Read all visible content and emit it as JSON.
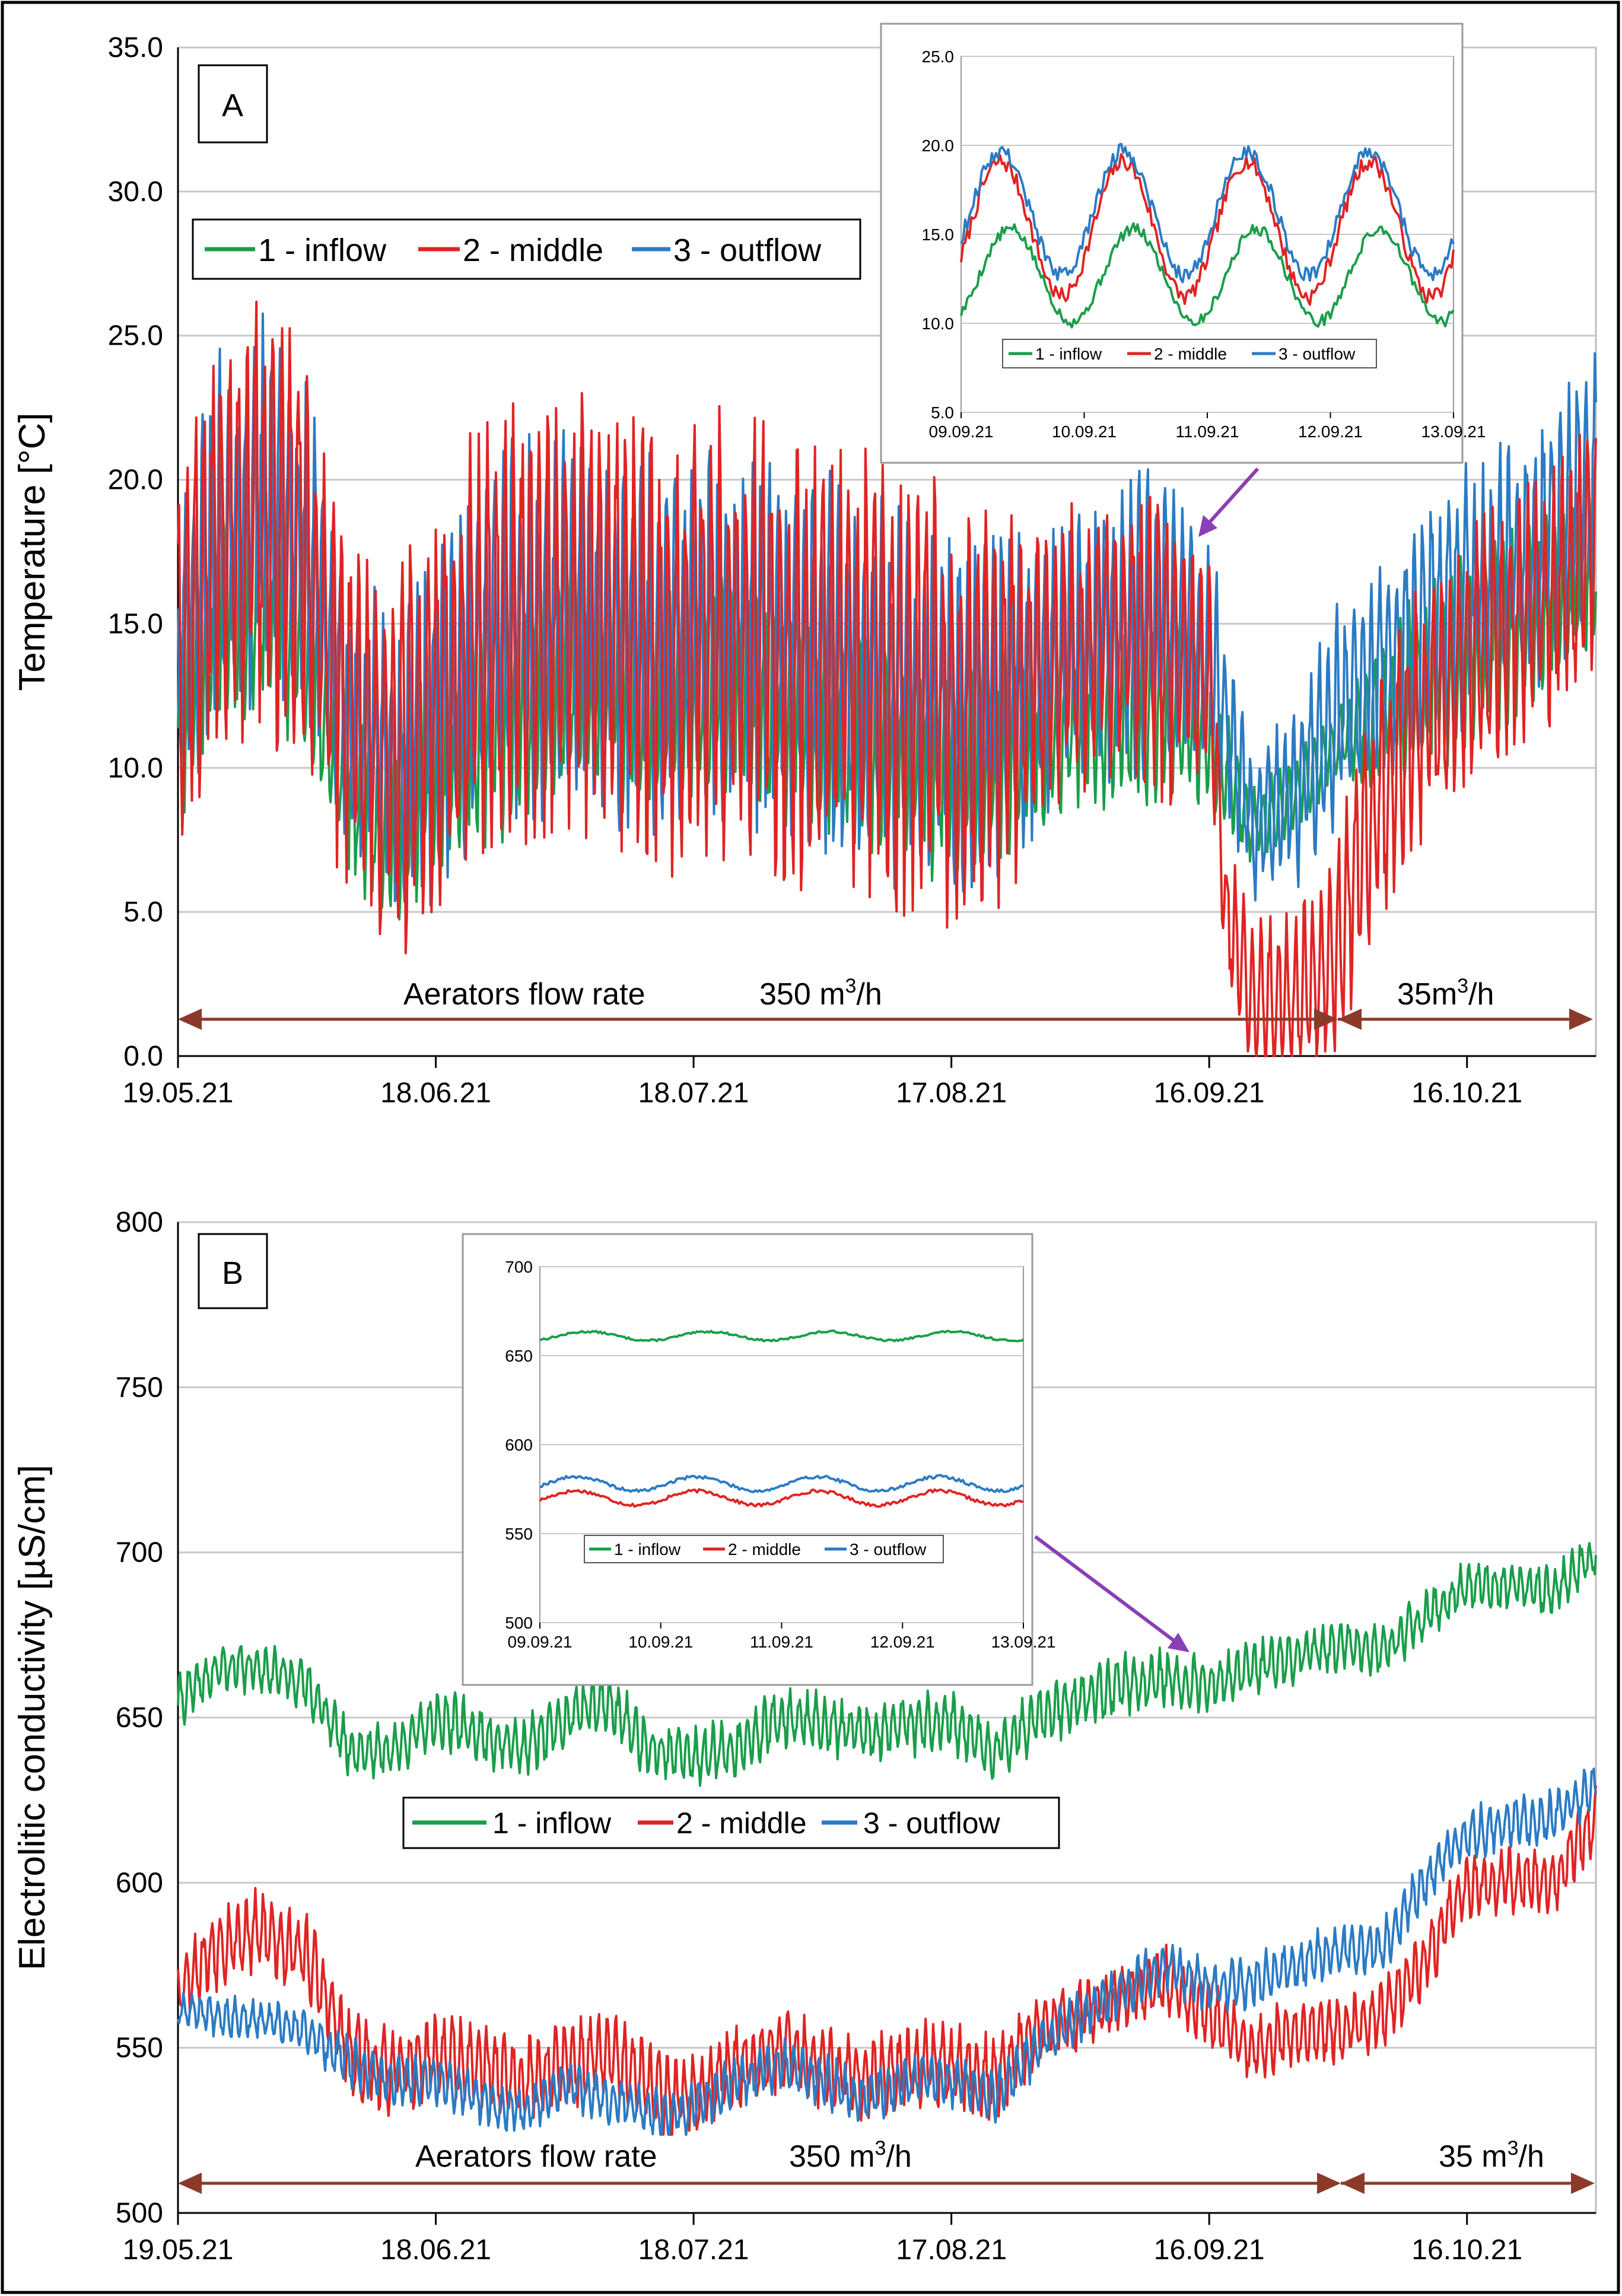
{
  "figure": {
    "frame": "outer-border"
  },
  "colors": {
    "inflow": "#1a9e4a",
    "middle": "#e02424",
    "outflow": "#2b7bc4",
    "arrow": "#8b3a2a",
    "callout": "#8a3fb5",
    "grid": "#c8c8c8"
  },
  "chart_data": [
    {
      "id": "A",
      "type": "line",
      "panel_label": "A",
      "ylabel": "Temperature [°C]",
      "xlabel": "",
      "ylim": [
        0,
        35
      ],
      "yticks": [
        "0.0",
        "5.0",
        "10.0",
        "15.0",
        "20.0",
        "25.0",
        "30.0",
        "35.0"
      ],
      "xlim_days": [
        0,
        165
      ],
      "xticks": [
        {
          "label": "19.05.21",
          "day": 0
        },
        {
          "label": "18.06.21",
          "day": 30
        },
        {
          "label": "18.07.21",
          "day": 60
        },
        {
          "label": "17.08.21",
          "day": 90
        },
        {
          "label": "16.09.21",
          "day": 120
        },
        {
          "label": "16.10.21",
          "day": 150
        }
      ],
      "legend": [
        "1 - inflow",
        "2 - middle",
        "3 - outflow"
      ],
      "legend_position": "top-left",
      "series": [
        {
          "name": "1 - inflow",
          "color": "#1a9e4a",
          "days": [
            0,
            5,
            10,
            15,
            20,
            25,
            30,
            35,
            40,
            45,
            50,
            55,
            60,
            65,
            70,
            75,
            80,
            85,
            90,
            95,
            100,
            105,
            110,
            115,
            120,
            125,
            130,
            135,
            140,
            145,
            150,
            155,
            160,
            165
          ],
          "mean": [
            12,
            15,
            16,
            14,
            9,
            8,
            10,
            11,
            12,
            13,
            13,
            12,
            12.5,
            13,
            12,
            11.5,
            11,
            10.5,
            10,
            10.5,
            11,
            11.5,
            12,
            12,
            11,
            8,
            9,
            11,
            12,
            13,
            14,
            15,
            16,
            16.5
          ],
          "amp": [
            3,
            3,
            3,
            3,
            2.5,
            2.5,
            3,
            3,
            3,
            3,
            3,
            3,
            3,
            3,
            3,
            3,
            3,
            3,
            3,
            3,
            2.5,
            2.5,
            2.5,
            2.5,
            2,
            1,
            1,
            1,
            2,
            2.5,
            2.5,
            2.5,
            2.5,
            2.5
          ],
          "phase": 0.0,
          "seed": 11
        },
        {
          "name": "3 - outflow",
          "color": "#2b7bc4",
          "days": [
            0,
            5,
            10,
            15,
            20,
            25,
            30,
            35,
            40,
            45,
            50,
            55,
            60,
            65,
            70,
            75,
            80,
            85,
            90,
            95,
            100,
            105,
            110,
            115,
            120,
            125,
            130,
            135,
            140,
            145,
            150,
            155,
            160,
            165
          ],
          "mean": [
            14,
            18,
            19,
            17,
            12,
            10,
            12,
            14,
            15,
            15,
            15,
            14,
            14.5,
            15,
            14,
            13.5,
            13,
            12.5,
            12,
            12.5,
            13,
            14,
            15,
            15,
            14,
            8,
            9,
            12,
            13,
            15,
            16,
            17,
            18,
            20
          ],
          "amp": [
            4,
            5,
            5,
            5,
            4,
            4,
            5,
            5,
            5,
            5,
            5,
            5,
            5,
            5,
            5,
            5,
            5,
            5,
            5,
            5,
            4,
            4,
            4,
            4,
            3,
            2,
            2.5,
            3,
            3,
            3.5,
            3.5,
            3.5,
            3.5,
            3.5
          ],
          "phase": 0.4,
          "seed": 23
        },
        {
          "name": "2 - middle",
          "color": "#e02424",
          "days": [
            0,
            5,
            10,
            15,
            20,
            25,
            30,
            35,
            40,
            45,
            50,
            55,
            60,
            65,
            70,
            75,
            80,
            85,
            90,
            95,
            100,
            105,
            110,
            115,
            120,
            122,
            125,
            130,
            135,
            140,
            145,
            150,
            155,
            160,
            165
          ],
          "mean": [
            14,
            18,
            19,
            17,
            12,
            10,
            12,
            14,
            15,
            15,
            15,
            14,
            14.5,
            15,
            14,
            13.5,
            13,
            12.5,
            12,
            12.5,
            13,
            14,
            15,
            14,
            13,
            5,
            2,
            2,
            4,
            9,
            12,
            14,
            15,
            16,
            18
          ],
          "amp": [
            5,
            6,
            6,
            6,
            5,
            5,
            6,
            6,
            6,
            6,
            6,
            6,
            6,
            6,
            6,
            6,
            6,
            6,
            6,
            6,
            4,
            4,
            4,
            4,
            3,
            2,
            2,
            2.5,
            3,
            3.5,
            3.5,
            3.5,
            3.5,
            3.5,
            3.5
          ],
          "phase": 0.2,
          "seed": 37
        }
      ],
      "annotations": [
        {
          "text": "Aerators flow rate",
          "kind": "label"
        },
        {
          "text": "350 m",
          "sup": "3",
          "after": "/h",
          "span_days": [
            0,
            135
          ]
        },
        {
          "text": "35m",
          "sup": "3",
          "after": "/h",
          "span_days": [
            135,
            165
          ]
        }
      ],
      "inset": {
        "type": "line",
        "ylim": [
          5,
          25
        ],
        "yticks": [
          "5.0",
          "10.0",
          "15.0",
          "20.0",
          "25.0"
        ],
        "xticks": [
          "09.09.21",
          "10.09.21",
          "11.09.21",
          "12.09.21",
          "13.09.21"
        ],
        "legend": [
          "1 - inflow",
          "2 - middle",
          "3 - outflow"
        ],
        "series": [
          {
            "name": "1 - inflow",
            "color": "#1a9e4a",
            "mean": 12.7,
            "amp": 2.6,
            "phase": 0.0,
            "seed": 5
          },
          {
            "name": "2 - middle",
            "color": "#e02424",
            "mean": 15.3,
            "amp": 3.8,
            "phase": 0.08,
            "seed": 7
          },
          {
            "name": "3 - outflow",
            "color": "#2b7bc4",
            "mean": 16.2,
            "amp": 3.5,
            "phase": 0.08,
            "seed": 9
          }
        ]
      }
    },
    {
      "id": "B",
      "type": "line",
      "panel_label": "B",
      "ylabel": "Electrolitic conductivity [µS/cm]",
      "xlabel": "",
      "ylim": [
        500,
        800
      ],
      "yticks": [
        "500",
        "550",
        "600",
        "650",
        "700",
        "750",
        "800"
      ],
      "xlim_days": [
        0,
        165
      ],
      "xticks": [
        {
          "label": "19.05.21",
          "day": 0
        },
        {
          "label": "18.06.21",
          "day": 30
        },
        {
          "label": "18.07.21",
          "day": 60
        },
        {
          "label": "17.08.21",
          "day": 90
        },
        {
          "label": "16.09.21",
          "day": 120
        },
        {
          "label": "16.10.21",
          "day": 150
        }
      ],
      "legend": [
        "1 - inflow",
        "2 - middle",
        "3 - outflow"
      ],
      "legend_position": "center-left",
      "series": [
        {
          "name": "1 - inflow",
          "color": "#1a9e4a",
          "days": [
            0,
            5,
            10,
            15,
            20,
            25,
            30,
            35,
            40,
            45,
            50,
            55,
            60,
            65,
            70,
            75,
            80,
            85,
            90,
            95,
            100,
            105,
            110,
            115,
            120,
            125,
            130,
            135,
            140,
            145,
            150,
            155,
            160,
            165
          ],
          "mean": [
            655,
            665,
            665,
            660,
            640,
            640,
            650,
            645,
            640,
            650,
            655,
            640,
            638,
            640,
            650,
            648,
            645,
            648,
            648,
            640,
            650,
            655,
            660,
            662,
            660,
            665,
            668,
            672,
            670,
            680,
            690,
            690,
            688,
            700
          ],
          "amp": [
            6,
            6,
            6,
            6,
            6,
            6,
            7,
            7,
            7,
            7,
            7,
            7,
            7,
            7,
            7,
            7,
            7,
            7,
            7,
            7,
            7,
            7,
            7,
            7,
            6,
            6,
            6,
            6,
            6,
            6,
            6,
            6,
            6,
            6
          ],
          "phase": 0.0,
          "seed": 41
        },
        {
          "name": "2 - middle",
          "color": "#e02424",
          "days": [
            0,
            5,
            10,
            15,
            20,
            25,
            30,
            35,
            40,
            45,
            50,
            55,
            60,
            65,
            70,
            75,
            80,
            85,
            90,
            95,
            100,
            105,
            110,
            115,
            120,
            125,
            130,
            135,
            140,
            145,
            150,
            155,
            160,
            165
          ],
          "mean": [
            568,
            582,
            585,
            578,
            548,
            542,
            548,
            545,
            540,
            545,
            548,
            538,
            535,
            545,
            550,
            545,
            540,
            545,
            545,
            540,
            555,
            560,
            565,
            570,
            560,
            550,
            555,
            555,
            560,
            575,
            600,
            600,
            600,
            620
          ],
          "amp": [
            8,
            10,
            10,
            10,
            10,
            10,
            10,
            10,
            10,
            10,
            10,
            10,
            10,
            10,
            10,
            10,
            10,
            10,
            10,
            10,
            8,
            8,
            8,
            8,
            8,
            8,
            8,
            8,
            8,
            8,
            8,
            8,
            8,
            8
          ],
          "phase": 0.3,
          "seed": 53
        },
        {
          "name": "3 - outflow",
          "color": "#2b7bc4",
          "days": [
            0,
            5,
            10,
            15,
            20,
            25,
            30,
            35,
            40,
            45,
            50,
            55,
            60,
            65,
            70,
            75,
            80,
            85,
            90,
            95,
            100,
            105,
            110,
            115,
            120,
            125,
            130,
            135,
            140,
            145,
            150,
            155,
            160,
            165
          ],
          "mean": [
            562,
            560,
            558,
            555,
            545,
            540,
            540,
            535,
            530,
            540,
            535,
            530,
            532,
            540,
            545,
            540,
            535,
            540,
            540,
            535,
            550,
            560,
            568,
            575,
            568,
            570,
            575,
            580,
            580,
            600,
            615,
            618,
            620,
            630
          ],
          "amp": [
            4,
            5,
            5,
            5,
            6,
            6,
            6,
            6,
            6,
            6,
            6,
            6,
            6,
            6,
            6,
            6,
            6,
            6,
            6,
            6,
            6,
            6,
            6,
            6,
            6,
            6,
            6,
            6,
            6,
            6,
            6,
            6,
            6,
            6
          ],
          "phase": 0.6,
          "seed": 67
        }
      ],
      "annotations": [
        {
          "text": "Aerators flow rate",
          "kind": "label"
        },
        {
          "text": "350 m",
          "sup": "3",
          "after": "/h",
          "span_days": [
            0,
            135
          ]
        },
        {
          "text": "35 m",
          "sup": "3",
          "after": "/h",
          "span_days": [
            135,
            165
          ]
        }
      ],
      "inset": {
        "type": "line",
        "ylim": [
          500,
          700
        ],
        "yticks": [
          "500",
          "550",
          "600",
          "650",
          "700"
        ],
        "xticks": [
          "09.09.21",
          "10.09.21",
          "11.09.21",
          "12.09.21",
          "13.09.21"
        ],
        "legend": [
          "1 - inflow",
          "2 - middle",
          "3 - outflow"
        ],
        "series": [
          {
            "name": "1 - inflow",
            "color": "#1a9e4a",
            "mean": 661,
            "amp": 2.5,
            "phase": 0.0,
            "seed": 13
          },
          {
            "name": "2 - middle",
            "color": "#e02424",
            "mean": 570,
            "amp": 4,
            "phase": 0.1,
            "seed": 17
          },
          {
            "name": "3 - outflow",
            "color": "#2b7bc4",
            "mean": 578,
            "amp": 4,
            "phase": 0.1,
            "seed": 19
          }
        ]
      }
    }
  ]
}
